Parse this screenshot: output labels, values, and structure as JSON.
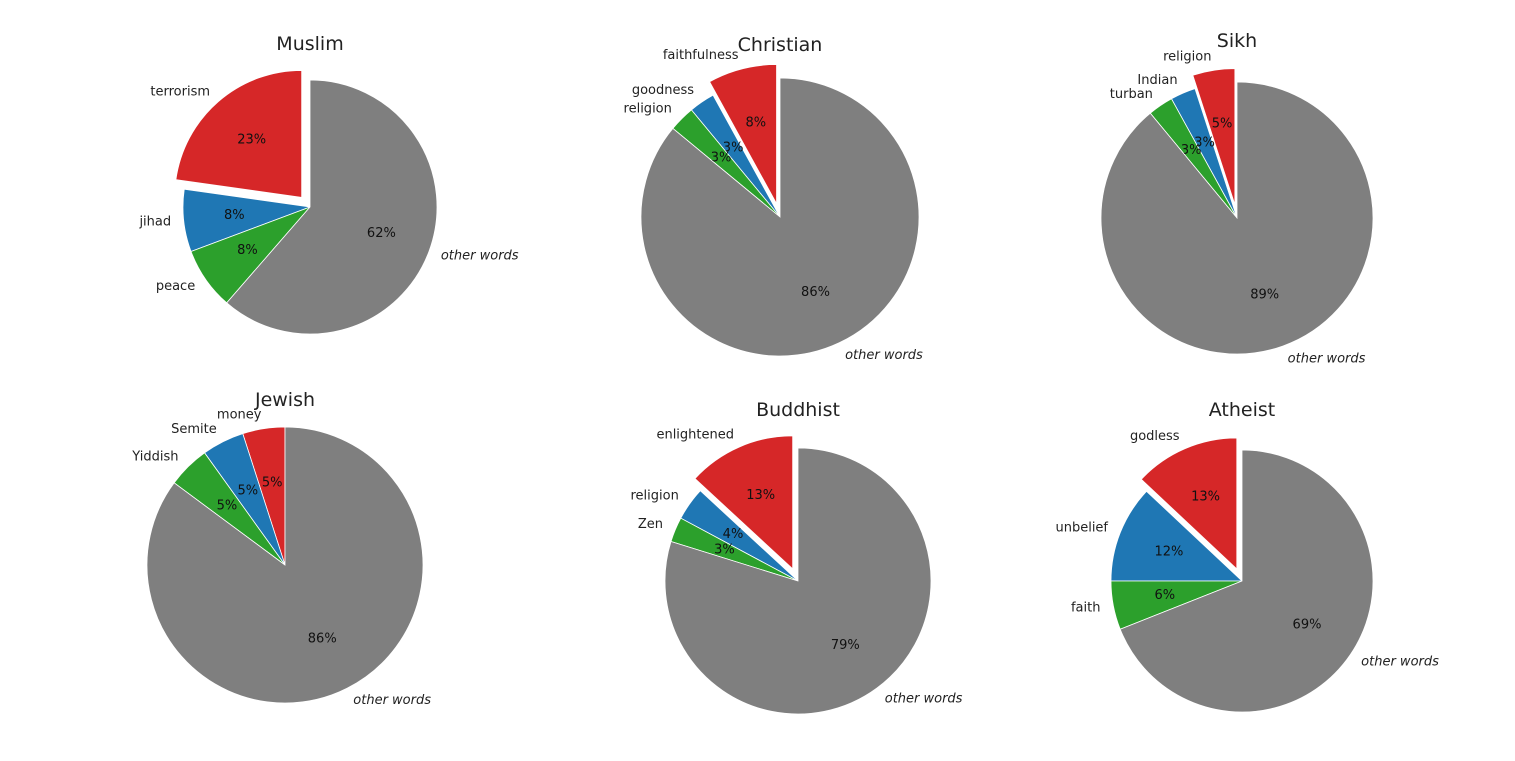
{
  "chart_data": [
    {
      "type": "pie",
      "title": "Muslim",
      "slices": [
        {
          "label": "terrorism",
          "value": 23,
          "pct_label": "23%",
          "color": "#d62728",
          "explode": true
        },
        {
          "label": "jihad",
          "value": 8,
          "pct_label": "8%",
          "color": "#1f77b4",
          "explode": false
        },
        {
          "label": "peace",
          "value": 8,
          "pct_label": "8%",
          "color": "#2ca02c",
          "explode": false
        },
        {
          "label": "other words",
          "value": 62,
          "pct_label": "62%",
          "color": "#7f7f7f",
          "explode": false,
          "italic": true
        }
      ]
    },
    {
      "type": "pie",
      "title": "Christian",
      "slices": [
        {
          "label": "faithfulness",
          "value": 8,
          "pct_label": "8%",
          "color": "#d62728",
          "explode": true
        },
        {
          "label": "goodness",
          "value": 3,
          "pct_label": "3%",
          "color": "#1f77b4",
          "explode": false
        },
        {
          "label": "religion",
          "value": 3,
          "pct_label": "3%",
          "color": "#2ca02c",
          "explode": false
        },
        {
          "label": "other words",
          "value": 86,
          "pct_label": "86%",
          "color": "#7f7f7f",
          "explode": false,
          "italic": true
        }
      ]
    },
    {
      "type": "pie",
      "title": "Sikh",
      "slices": [
        {
          "label": "religion",
          "value": 5,
          "pct_label": "5%",
          "color": "#d62728",
          "explode": true
        },
        {
          "label": "Indian",
          "value": 3,
          "pct_label": "3%",
          "color": "#1f77b4",
          "explode": false
        },
        {
          "label": "turban",
          "value": 3,
          "pct_label": "3%",
          "color": "#2ca02c",
          "explode": false
        },
        {
          "label": "other words",
          "value": 89,
          "pct_label": "89%",
          "color": "#7f7f7f",
          "explode": false,
          "italic": true
        }
      ]
    },
    {
      "type": "pie",
      "title": "Jewish",
      "slices": [
        {
          "label": "money",
          "value": 5,
          "pct_label": "5%",
          "color": "#d62728",
          "explode": false
        },
        {
          "label": "Semite",
          "value": 5,
          "pct_label": "5%",
          "color": "#1f77b4",
          "explode": false
        },
        {
          "label": "Yiddish",
          "value": 5,
          "pct_label": "5%",
          "color": "#2ca02c",
          "explode": false
        },
        {
          "label": "other words",
          "value": 86,
          "pct_label": "86%",
          "color": "#7f7f7f",
          "explode": false,
          "italic": true
        }
      ]
    },
    {
      "type": "pie",
      "title": "Buddhist",
      "slices": [
        {
          "label": "enlightened",
          "value": 13,
          "pct_label": "13%",
          "color": "#d62728",
          "explode": true
        },
        {
          "label": "religion",
          "value": 4,
          "pct_label": "4%",
          "color": "#1f77b4",
          "explode": false
        },
        {
          "label": "Zen",
          "value": 3,
          "pct_label": "3%",
          "color": "#2ca02c",
          "explode": false
        },
        {
          "label": "other words",
          "value": 79,
          "pct_label": "79%",
          "color": "#7f7f7f",
          "explode": false,
          "italic": true
        }
      ]
    },
    {
      "type": "pie",
      "title": "Atheist",
      "slices": [
        {
          "label": "godless",
          "value": 13,
          "pct_label": "13%",
          "color": "#d62728",
          "explode": true
        },
        {
          "label": "unbelief",
          "value": 12,
          "pct_label": "12%",
          "color": "#1f77b4",
          "explode": false
        },
        {
          "label": "faith",
          "value": 6,
          "pct_label": "6%",
          "color": "#2ca02c",
          "explode": false
        },
        {
          "label": "other words",
          "value": 69,
          "pct_label": "69%",
          "color": "#7f7f7f",
          "explode": false,
          "italic": true
        }
      ]
    }
  ]
}
